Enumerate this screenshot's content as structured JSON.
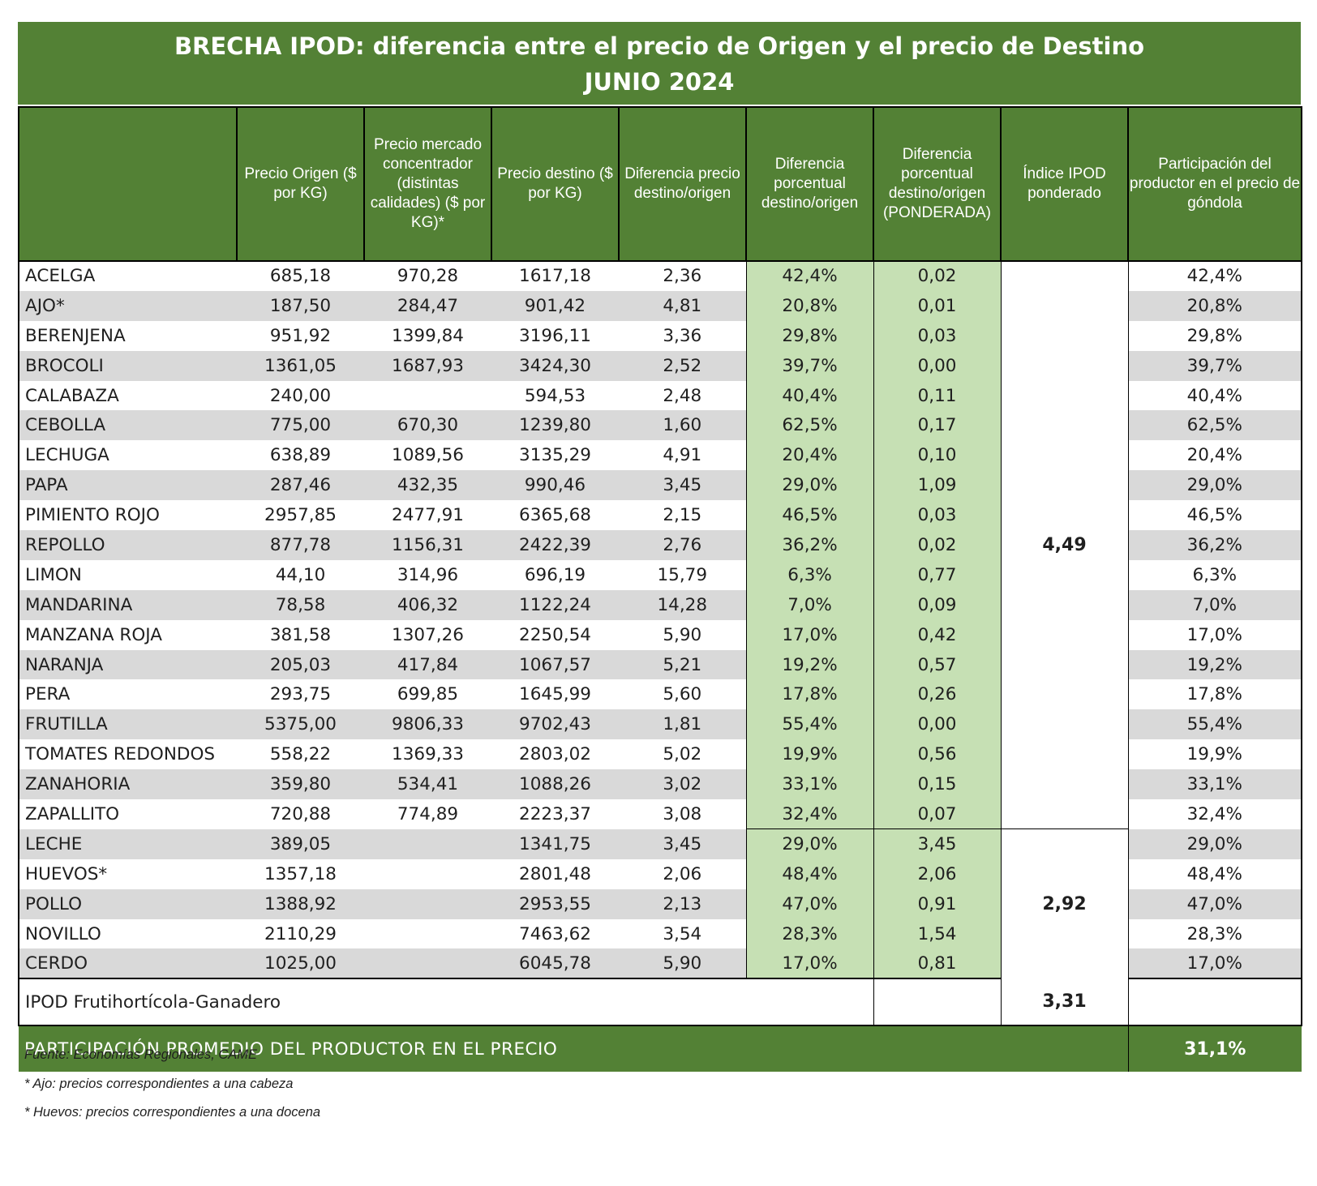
{
  "title": {
    "line1": "BRECHA IPOD: diferencia entre el precio de Origen y el precio de Destino",
    "line2": "JUNIO 2024"
  },
  "headers": [
    "",
    "Precio Origen ($ por KG)",
    "Precio mercado concentrador (distintas calidades) ($ por KG)*",
    "Precio destino ($ por KG)",
    "Diferencia precio destino/origen",
    "Diferencia porcentual destino/origen",
    "Diferencia porcentual destino/origen (PONDERADA)",
    "Índice IPOD ponderado",
    "Participación del productor en el precio de góndola"
  ],
  "rows": [
    {
      "name": "ACELGA",
      "origen": "685,18",
      "mercado": "970,28",
      "destino": "1617,18",
      "dif": "2,36",
      "pct": "42,4%",
      "pond": "0,02",
      "part": "42,4%"
    },
    {
      "name": "AJO*",
      "origen": "187,50",
      "mercado": "284,47",
      "destino": "901,42",
      "dif": "4,81",
      "pct": "20,8%",
      "pond": "0,01",
      "part": "20,8%"
    },
    {
      "name": "BERENJENA",
      "origen": "951,92",
      "mercado": "1399,84",
      "destino": "3196,11",
      "dif": "3,36",
      "pct": "29,8%",
      "pond": "0,03",
      "part": "29,8%"
    },
    {
      "name": "BROCOLI",
      "origen": "1361,05",
      "mercado": "1687,93",
      "destino": "3424,30",
      "dif": "2,52",
      "pct": "39,7%",
      "pond": "0,00",
      "part": "39,7%"
    },
    {
      "name": "CALABAZA",
      "origen": "240,00",
      "mercado": "",
      "destino": "594,53",
      "dif": "2,48",
      "pct": "40,4%",
      "pond": "0,11",
      "part": "40,4%"
    },
    {
      "name": "CEBOLLA",
      "origen": "775,00",
      "mercado": "670,30",
      "destino": "1239,80",
      "dif": "1,60",
      "pct": "62,5%",
      "pond": "0,17",
      "part": "62,5%"
    },
    {
      "name": "LECHUGA",
      "origen": "638,89",
      "mercado": "1089,56",
      "destino": "3135,29",
      "dif": "4,91",
      "pct": "20,4%",
      "pond": "0,10",
      "part": "20,4%"
    },
    {
      "name": "PAPA",
      "origen": "287,46",
      "mercado": "432,35",
      "destino": "990,46",
      "dif": "3,45",
      "pct": "29,0%",
      "pond": "1,09",
      "part": "29,0%"
    },
    {
      "name": "PIMIENTO ROJO",
      "origen": "2957,85",
      "mercado": "2477,91",
      "destino": "6365,68",
      "dif": "2,15",
      "pct": "46,5%",
      "pond": "0,03",
      "part": "46,5%"
    },
    {
      "name": "REPOLLO",
      "origen": "877,78",
      "mercado": "1156,31",
      "destino": "2422,39",
      "dif": "2,76",
      "pct": "36,2%",
      "pond": "0,02",
      "part": "36,2%"
    },
    {
      "name": "LIMON",
      "origen": "44,10",
      "mercado": "314,96",
      "destino": "696,19",
      "dif": "15,79",
      "pct": "6,3%",
      "pond": "0,77",
      "part": "6,3%"
    },
    {
      "name": "MANDARINA",
      "origen": "78,58",
      "mercado": "406,32",
      "destino": "1122,24",
      "dif": "14,28",
      "pct": "7,0%",
      "pond": "0,09",
      "part": "7,0%"
    },
    {
      "name": "MANZANA ROJA",
      "origen": "381,58",
      "mercado": "1307,26",
      "destino": "2250,54",
      "dif": "5,90",
      "pct": "17,0%",
      "pond": "0,42",
      "part": "17,0%"
    },
    {
      "name": "NARANJA",
      "origen": "205,03",
      "mercado": "417,84",
      "destino": "1067,57",
      "dif": "5,21",
      "pct": "19,2%",
      "pond": "0,57",
      "part": "19,2%"
    },
    {
      "name": "PERA",
      "origen": "293,75",
      "mercado": "699,85",
      "destino": "1645,99",
      "dif": "5,60",
      "pct": "17,8%",
      "pond": "0,26",
      "part": "17,8%"
    },
    {
      "name": "FRUTILLA",
      "origen": "5375,00",
      "mercado": "9806,33",
      "destino": "9702,43",
      "dif": "1,81",
      "pct": "55,4%",
      "pond": "0,00",
      "part": "55,4%"
    },
    {
      "name": "TOMATES REDONDOS",
      "origen": "558,22",
      "mercado": "1369,33",
      "destino": "2803,02",
      "dif": "5,02",
      "pct": "19,9%",
      "pond": "0,56",
      "part": "19,9%"
    },
    {
      "name": "ZANAHORIA",
      "origen": "359,80",
      "mercado": "534,41",
      "destino": "1088,26",
      "dif": "3,02",
      "pct": "33,1%",
      "pond": "0,15",
      "part": "33,1%"
    },
    {
      "name": "ZAPALLITO",
      "origen": "720,88",
      "mercado": "774,89",
      "destino": "2223,37",
      "dif": "3,08",
      "pct": "32,4%",
      "pond": "0,07",
      "part": "32,4%"
    },
    {
      "name": "LECHE",
      "origen": "389,05",
      "mercado": "",
      "destino": "1341,75",
      "dif": "3,45",
      "pct": "29,0%",
      "pond": "3,45",
      "part": "29,0%"
    },
    {
      "name": "HUEVOS*",
      "origen": "1357,18",
      "mercado": "",
      "destino": "2801,48",
      "dif": "2,06",
      "pct": "48,4%",
      "pond": "2,06",
      "part": "48,4%"
    },
    {
      "name": "POLLO",
      "origen": "1388,92",
      "mercado": "",
      "destino": "2953,55",
      "dif": "2,13",
      "pct": "47,0%",
      "pond": "0,91",
      "part": "47,0%"
    },
    {
      "name": "NOVILLO",
      "origen": "2110,29",
      "mercado": "",
      "destino": "7463,62",
      "dif": "3,54",
      "pct": "28,3%",
      "pond": "1,54",
      "part": "28,3%"
    },
    {
      "name": "CERDO",
      "origen": "1025,00",
      "mercado": "",
      "destino": "6045,78",
      "dif": "5,90",
      "pct": "17,0%",
      "pond": "0,81",
      "part": "17,0%"
    }
  ],
  "groups": [
    {
      "index": "4,49",
      "row_count": 19
    },
    {
      "index": "2,92",
      "row_count": 5
    }
  ],
  "summary": {
    "label": "IPOD Frutihortícola-Ganadero",
    "value": "3,31"
  },
  "promedio": {
    "label": "PARTICIPACIÓN PROMEDIO DEL PRODUCTOR EN EL PRECIO",
    "value": "31,1%"
  },
  "notes": [
    "Fuente: Economías Regionales, CAME",
    "* Ajo: precios correspondientes a una cabeza",
    "* Huevos: precios correspondientes a una docena"
  ],
  "colors": {
    "header_green": "#538135",
    "light_green": "#c6e0b4",
    "stripe_gray": "#d9d9d9"
  }
}
